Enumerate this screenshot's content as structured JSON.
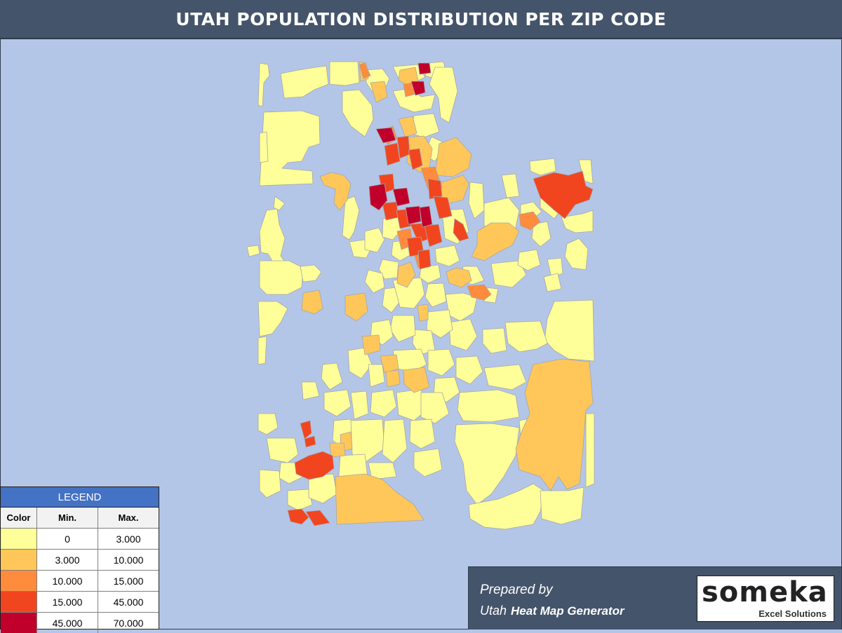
{
  "title": "UTAH POPULATION DISTRIBUTION PER ZIP CODE",
  "map": {
    "region": "Utah",
    "background_color": "#b4c6e7",
    "border_color": "#a6a6a6"
  },
  "legend": {
    "title": "LEGEND",
    "headers": {
      "color": "Color",
      "min": "Min.",
      "max": "Max."
    },
    "rows": [
      {
        "color": "#ffff99",
        "min": "0",
        "max": "3.000"
      },
      {
        "color": "#ffc75a",
        "min": "3.000",
        "max": "10.000"
      },
      {
        "color": "#ff8c3c",
        "min": "10.000",
        "max": "15.000"
      },
      {
        "color": "#f14520",
        "min": "15.000",
        "max": "45.000"
      },
      {
        "color": "#c0002b",
        "min": "45.000",
        "max": "70.000"
      }
    ]
  },
  "footer": {
    "prepared_label": "Prepared by",
    "state": "Utah",
    "tool_name": "Heat Map Generator",
    "logo_text": "someka",
    "logo_subtext": "Excel Solutions"
  }
}
